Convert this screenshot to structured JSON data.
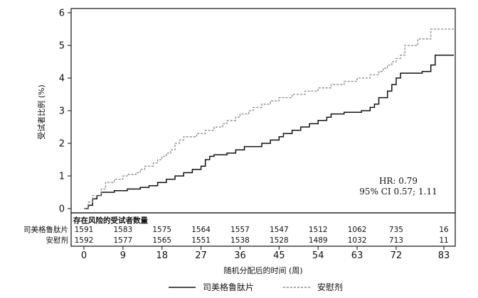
{
  "chart_data": {
    "type": "line",
    "ylabel": "受试者比例 (%)",
    "xlabel": "随机分配后的时间 (周)",
    "xlim": [
      0,
      87
    ],
    "ylim": [
      0,
      6
    ],
    "x_ticks": [
      0,
      9,
      18,
      27,
      36,
      45,
      54,
      63,
      72,
      83
    ],
    "y_ticks": [
      0,
      1,
      2,
      3,
      4,
      5,
      6
    ],
    "grid": false,
    "legend_position": "bottom",
    "series": [
      {
        "name": "司美格鲁肽片",
        "line_style": "solid",
        "color": "#111111",
        "points": [
          [
            0,
            0
          ],
          [
            1,
            0.1
          ],
          [
            2,
            0.3
          ],
          [
            3,
            0.4
          ],
          [
            4,
            0.5
          ],
          [
            6,
            0.5
          ],
          [
            7,
            0.55
          ],
          [
            10,
            0.6
          ],
          [
            13,
            0.65
          ],
          [
            15,
            0.7
          ],
          [
            17,
            0.8
          ],
          [
            19,
            0.9
          ],
          [
            21,
            1.0
          ],
          [
            23,
            1.1
          ],
          [
            25,
            1.2
          ],
          [
            27,
            1.3
          ],
          [
            28,
            1.5
          ],
          [
            29,
            1.6
          ],
          [
            30,
            1.65
          ],
          [
            33,
            1.7
          ],
          [
            35,
            1.8
          ],
          [
            37,
            1.9
          ],
          [
            39,
            1.9
          ],
          [
            41,
            2.0
          ],
          [
            43,
            2.1
          ],
          [
            45,
            2.2
          ],
          [
            46,
            2.3
          ],
          [
            48,
            2.4
          ],
          [
            50,
            2.5
          ],
          [
            52,
            2.6
          ],
          [
            54,
            2.7
          ],
          [
            56,
            2.8
          ],
          [
            57,
            2.9
          ],
          [
            60,
            2.95
          ],
          [
            64,
            3.0
          ],
          [
            66,
            3.1
          ],
          [
            67,
            3.2
          ],
          [
            68,
            3.4
          ],
          [
            70,
            3.6
          ],
          [
            71,
            3.8
          ],
          [
            72,
            4.0
          ],
          [
            73,
            4.15
          ],
          [
            78,
            4.2
          ],
          [
            80,
            4.4
          ],
          [
            81,
            4.7
          ],
          [
            87,
            4.7
          ]
        ]
      },
      {
        "name": "安慰剂",
        "line_style": "dashed",
        "color": "#888888",
        "points": [
          [
            0,
            0
          ],
          [
            1,
            0.2
          ],
          [
            2,
            0.4
          ],
          [
            4,
            0.6
          ],
          [
            5,
            0.8
          ],
          [
            7,
            0.9
          ],
          [
            9,
            1.0
          ],
          [
            10,
            1.05
          ],
          [
            12,
            1.1
          ],
          [
            13,
            1.2
          ],
          [
            14,
            1.3
          ],
          [
            16,
            1.4
          ],
          [
            17,
            1.5
          ],
          [
            18,
            1.6
          ],
          [
            19,
            1.7
          ],
          [
            20,
            1.8
          ],
          [
            21,
            2.0
          ],
          [
            22,
            2.1
          ],
          [
            23,
            2.2
          ],
          [
            26,
            2.3
          ],
          [
            28,
            2.4
          ],
          [
            30,
            2.5
          ],
          [
            32,
            2.6
          ],
          [
            33,
            2.7
          ],
          [
            35,
            2.8
          ],
          [
            36,
            2.9
          ],
          [
            38,
            3.0
          ],
          [
            39,
            3.1
          ],
          [
            41,
            3.2
          ],
          [
            43,
            3.3
          ],
          [
            45,
            3.4
          ],
          [
            48,
            3.5
          ],
          [
            51,
            3.6
          ],
          [
            54,
            3.7
          ],
          [
            57,
            3.8
          ],
          [
            60,
            3.9
          ],
          [
            63,
            4.0
          ],
          [
            66,
            4.1
          ],
          [
            68,
            4.2
          ],
          [
            69,
            4.3
          ],
          [
            70,
            4.4
          ],
          [
            71,
            4.5
          ],
          [
            72,
            4.6
          ],
          [
            73,
            4.7
          ],
          [
            74,
            5.0
          ],
          [
            77,
            5.2
          ],
          [
            80,
            5.5
          ],
          [
            87,
            5.5
          ]
        ]
      }
    ],
    "annotations": {
      "hr": "HR: 0.79",
      "ci": "95% CI 0.57; 1.11"
    },
    "risk_table": {
      "title": "存在风险的受试者数量",
      "rows": [
        {
          "label": "司美格鲁肽片",
          "counts": [
            "1591",
            "1583",
            "1575",
            "1564",
            "1557",
            "1547",
            "1512",
            "1062",
            "735",
            "16"
          ]
        },
        {
          "label": "安慰剂",
          "counts": [
            "1592",
            "1577",
            "1565",
            "1551",
            "1538",
            "1528",
            "1489",
            "1032",
            "713",
            "11"
          ]
        }
      ]
    }
  }
}
